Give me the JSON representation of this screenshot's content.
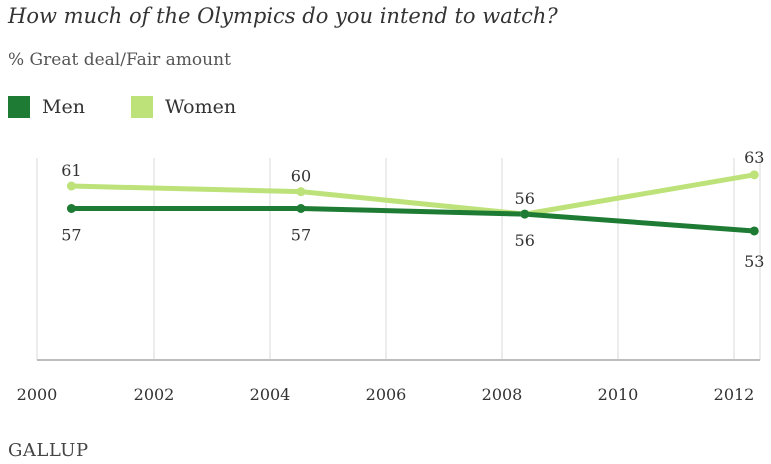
{
  "title": "How much of the Olympics do you intend to watch?",
  "subtitle": "% Great deal/Fair amount",
  "logo_text": "GALLUP",
  "chart_data": {
    "type": "line",
    "xlim": [
      2000,
      2012.6
    ],
    "ylim": [
      30,
      66
    ],
    "x_ticks": [
      2000,
      2002,
      2004,
      2006,
      2008,
      2010,
      2012
    ],
    "grid": true,
    "legend_position": "top-left",
    "series": [
      {
        "name": "Men",
        "color": "#1e7b34",
        "points": [
          {
            "x": 2000.6,
            "y": 57,
            "label": "57"
          },
          {
            "x": 2004.6,
            "y": 57,
            "label": "57"
          },
          {
            "x": 2008.5,
            "y": 56,
            "label": "56"
          },
          {
            "x": 2012.5,
            "y": 53,
            "label": "53"
          }
        ]
      },
      {
        "name": "Women",
        "color": "#bde27a",
        "points": [
          {
            "x": 2000.6,
            "y": 61,
            "label": "61"
          },
          {
            "x": 2004.6,
            "y": 60,
            "label": "60"
          },
          {
            "x": 2008.5,
            "y": 56,
            "label": "56"
          },
          {
            "x": 2012.5,
            "y": 63,
            "label": "63"
          }
        ]
      }
    ]
  }
}
